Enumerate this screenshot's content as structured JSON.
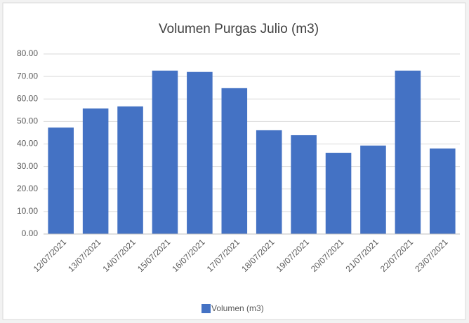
{
  "chart_data": {
    "type": "bar",
    "title": "Volumen Purgas Julio (m3)",
    "categories": [
      "12/07/2021",
      "13/07/2021",
      "14/07/2021",
      "15/07/2021",
      "16/07/2021",
      "17/07/2021",
      "18/07/2021",
      "19/07/2021",
      "20/07/2021",
      "21/07/2021",
      "22/07/2021",
      "23/07/2021"
    ],
    "series": [
      {
        "name": "Volumen (m3)",
        "color": "#4472c4",
        "values": [
          47.3,
          55.8,
          56.7,
          72.6,
          72.0,
          64.8,
          46.1,
          43.9,
          36.1,
          39.3,
          72.6,
          38.0
        ]
      }
    ],
    "ylim": [
      0,
      80
    ],
    "yticks": [
      {
        "value": 0,
        "label": "0.00"
      },
      {
        "value": 10,
        "label": "10.00"
      },
      {
        "value": 20,
        "label": "20.00"
      },
      {
        "value": 30,
        "label": "30.00"
      },
      {
        "value": 40,
        "label": "40.00"
      },
      {
        "value": 50,
        "label": "50.00"
      },
      {
        "value": 60,
        "label": "60.00"
      },
      {
        "value": 70,
        "label": "70.00"
      },
      {
        "value": 80,
        "label": "80.00"
      }
    ],
    "grid": true,
    "legend": "bottom"
  }
}
